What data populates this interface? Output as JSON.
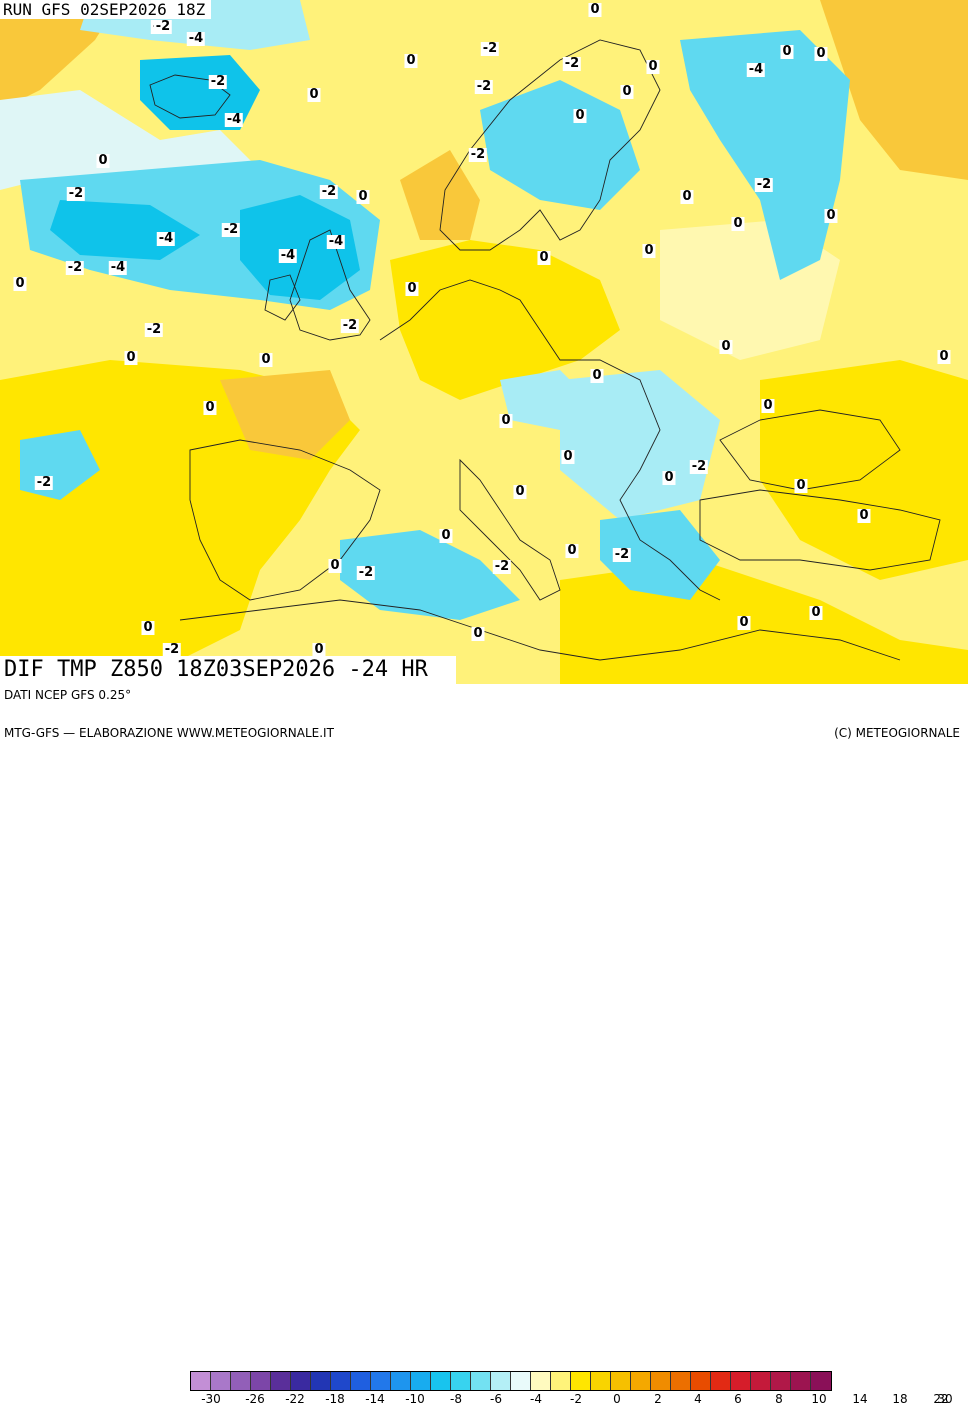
{
  "header": {
    "run_label": "RUN GFS 02SEP2026 18Z",
    "title": "DIF TMP Z850 18Z03SEP2026 -24 HR"
  },
  "map": {
    "colors": {
      "neg4": "#0fc3ea",
      "neg2": "#5fd9f0",
      "neg1": "#a8ecf5",
      "zero": "#dff6f6",
      "pos1": "#fff37a",
      "pos2": "#ffe600",
      "pos3": "#f9c83a",
      "coast": "#222222"
    },
    "values": [
      {
        "text": "-2"
      },
      {
        "text": "-4"
      },
      {
        "text": "-2"
      },
      {
        "text": "-4"
      },
      {
        "text": "0"
      },
      {
        "text": "0"
      },
      {
        "text": "-2"
      },
      {
        "text": "0"
      },
      {
        "text": "-2"
      },
      {
        "text": "-2"
      },
      {
        "text": "0"
      },
      {
        "text": "-4"
      },
      {
        "text": "-2"
      },
      {
        "text": "0"
      },
      {
        "text": "0"
      },
      {
        "text": "-2"
      },
      {
        "text": "0"
      },
      {
        "text": "-2"
      },
      {
        "text": "-4"
      },
      {
        "text": "-2"
      },
      {
        "text": "-4"
      },
      {
        "text": "-4"
      },
      {
        "text": "0"
      },
      {
        "text": "-2"
      },
      {
        "text": "0"
      },
      {
        "text": "-2"
      },
      {
        "text": "0"
      },
      {
        "text": "-2"
      },
      {
        "text": "-4"
      },
      {
        "text": "0"
      },
      {
        "text": "0"
      },
      {
        "text": "-2"
      },
      {
        "text": "0"
      },
      {
        "text": "-2"
      },
      {
        "text": "0"
      },
      {
        "text": "0"
      },
      {
        "text": "0"
      },
      {
        "text": "0"
      },
      {
        "text": "0"
      },
      {
        "text": "0"
      },
      {
        "text": "0"
      },
      {
        "text": "0"
      },
      {
        "text": "0"
      },
      {
        "text": "0"
      },
      {
        "text": "-2"
      },
      {
        "text": "0"
      },
      {
        "text": "-2"
      },
      {
        "text": "0"
      },
      {
        "text": "0"
      },
      {
        "text": "0"
      },
      {
        "text": "0"
      },
      {
        "text": "0"
      },
      {
        "text": "-2"
      },
      {
        "text": "0"
      },
      {
        "text": "-2"
      },
      {
        "text": "-2"
      },
      {
        "text": "0"
      },
      {
        "text": "0"
      },
      {
        "text": "0"
      },
      {
        "text": "0"
      },
      {
        "text": "-2"
      },
      {
        "text": "0"
      },
      {
        "text": "0"
      },
      {
        "text": "0"
      },
      {
        "text": "0"
      },
      {
        "text": "0"
      }
    ]
  },
  "footer": {
    "data_source": "DATI NCEP GFS 0.25°",
    "credit_left": "MTG-GFS — ELABORAZIONE WWW.METEOGIORNALE.IT",
    "credit_right": "(C) METEOGIORNALE",
    "colorbar": [
      "#c38fd6",
      "#a978c9",
      "#925fb8",
      "#7c46a8",
      "#5a2f9a",
      "#3a2aa0",
      "#2236b4",
      "#1f48cb",
      "#1f5fe0",
      "#2278ea",
      "#1e95ee",
      "#18acef",
      "#18c4ee",
      "#38d3ef",
      "#73e1f2",
      "#b4eff6",
      "#e9fafa",
      "#fffabf",
      "#fff37a",
      "#ffe600",
      "#f9d400",
      "#f6c000",
      "#f4a800",
      "#f08c00",
      "#ec6f00",
      "#e84c00",
      "#e22a14",
      "#d61d2a",
      "#c41a3a",
      "#b01848",
      "#9c1450",
      "#8a1058"
    ],
    "tick_labels": [
      "-30",
      "-26",
      "-22",
      "-18",
      "-14",
      "-10",
      "-8",
      "-6",
      "-4",
      "-2",
      "0",
      "2",
      "4",
      "6",
      "8",
      "10",
      "14",
      "18",
      "22",
      "30"
    ]
  }
}
